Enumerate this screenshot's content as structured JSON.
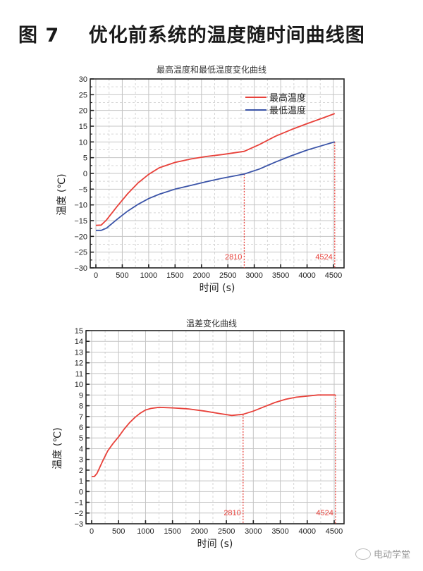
{
  "figure": {
    "title": "图 7    优化前系统的温度随时间曲线图"
  },
  "watermark": {
    "text": "电动学堂",
    "icon": "wechat-icon"
  },
  "chart_data": [
    {
      "type": "line",
      "title": "最高温度和最低温度变化曲线",
      "xlabel": "时间 (s)",
      "ylabel": "温度 (℃)",
      "xlim": [
        0,
        4500
      ],
      "ylim": [
        -30,
        30
      ],
      "xticks": [
        0,
        500,
        1000,
        1500,
        2000,
        2500,
        3000,
        3500,
        4000,
        4500
      ],
      "yticks": [
        30,
        25,
        20,
        15,
        10,
        5,
        0,
        -5,
        -10,
        -15,
        -20,
        -25,
        -30
      ],
      "grid": true,
      "legend_position": "upper right",
      "series": [
        {
          "name": "最高温度",
          "color": "#e8413a",
          "x": [
            0,
            100,
            200,
            400,
            600,
            800,
            1000,
            1200,
            1500,
            1800,
            2100,
            2400,
            2810,
            3100,
            3400,
            3700,
            4000,
            4300,
            4524
          ],
          "y": [
            -16.5,
            -16.4,
            -14.8,
            -10.5,
            -6.5,
            -3.0,
            -0.3,
            1.8,
            3.5,
            4.6,
            5.4,
            6.0,
            7.0,
            9.2,
            11.8,
            13.9,
            15.8,
            17.6,
            19.0
          ]
        },
        {
          "name": "最低温度",
          "color": "#3b54a8",
          "x": [
            0,
            100,
            200,
            400,
            600,
            800,
            1000,
            1200,
            1500,
            1800,
            2100,
            2400,
            2810,
            3100,
            3400,
            3700,
            4000,
            4300,
            4524
          ],
          "y": [
            -18.1,
            -18.1,
            -17.4,
            -14.6,
            -12.0,
            -9.8,
            -8.0,
            -6.6,
            -5.0,
            -3.8,
            -2.6,
            -1.5,
            -0.2,
            1.4,
            3.6,
            5.6,
            7.4,
            8.9,
            10.0
          ]
        }
      ],
      "annotations": [
        {
          "x": 2810,
          "label": "2810",
          "color": "#e8413a",
          "style": "dotted-vertical"
        },
        {
          "x": 4524,
          "label": "4524",
          "color": "#e8413a",
          "style": "dotted-vertical"
        }
      ]
    },
    {
      "type": "line",
      "title": "温差变化曲线",
      "xlabel": "时间 (s)",
      "ylabel": "温度 (℃)",
      "xlim": [
        0,
        4500
      ],
      "ylim": [
        -3,
        15
      ],
      "xticks": [
        0,
        500,
        1000,
        1500,
        2000,
        2500,
        3000,
        3500,
        4000,
        4500
      ],
      "yticks": [
        15,
        14,
        13,
        12,
        11,
        10,
        9,
        8,
        7,
        6,
        5,
        4,
        3,
        2,
        1,
        0,
        -1,
        -2,
        -3
      ],
      "grid": true,
      "series": [
        {
          "name": "温差",
          "color": "#e8413a",
          "x": [
            0,
            50,
            100,
            200,
            300,
            400,
            500,
            600,
            700,
            800,
            900,
            1000,
            1100,
            1250,
            1500,
            1800,
            2100,
            2400,
            2600,
            2810,
            3000,
            3200,
            3400,
            3600,
            3800,
            4000,
            4200,
            4400,
            4524
          ],
          "y": [
            1.4,
            1.4,
            1.7,
            2.8,
            3.8,
            4.5,
            5.1,
            5.8,
            6.4,
            6.9,
            7.3,
            7.6,
            7.75,
            7.85,
            7.8,
            7.7,
            7.5,
            7.25,
            7.1,
            7.2,
            7.5,
            7.9,
            8.3,
            8.6,
            8.8,
            8.9,
            9.0,
            9.0,
            9.0
          ]
        }
      ],
      "annotations": [
        {
          "x": 2810,
          "label": "2810",
          "color": "#e8413a",
          "style": "dotted-vertical"
        },
        {
          "x": 4524,
          "label": "4524",
          "color": "#e8413a",
          "style": "dotted-vertical"
        }
      ]
    }
  ]
}
